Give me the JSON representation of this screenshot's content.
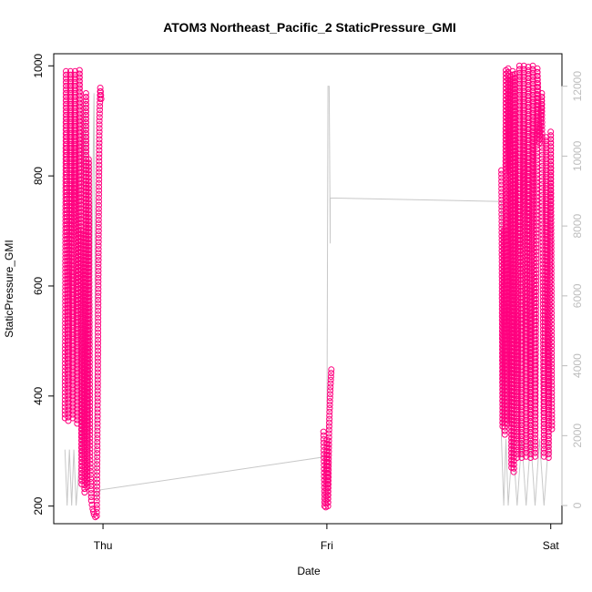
{
  "chart_data": {
    "type": "scatter",
    "title": "ATOM3 Northeast_Pacific_2 StaticPressure_GMI",
    "xlabel": "Date",
    "ylabel": "StaticPressure_GMI",
    "x_tick_labels": [
      "Thu",
      "Fri",
      "Sat"
    ],
    "x_ticks": [
      0,
      1,
      2
    ],
    "xlim": [
      -0.22,
      2.05
    ],
    "ylim": [
      168,
      1022
    ],
    "y_ticks": [
      200,
      400,
      600,
      800,
      1000
    ],
    "y2lim": [
      -520,
      12930
    ],
    "y2_ticks": [
      0,
      2000,
      4000,
      6000,
      8000,
      10000,
      12000
    ],
    "grid": false,
    "legend": "none",
    "colors": {
      "points": "#ff007f",
      "altitude_line": "#c8c8c8"
    },
    "series": [
      {
        "marker": "open-circle",
        "axis": "left",
        "segments": [
          [
            -0.17,
            360
          ],
          [
            -0.165,
            990
          ],
          [
            -0.155,
            355
          ],
          [
            -0.145,
            990
          ],
          [
            -0.135,
            360
          ],
          [
            -0.125,
            990
          ],
          [
            -0.115,
            350
          ],
          [
            -0.105,
            992
          ],
          [
            -0.095,
            240
          ],
          [
            -0.088,
            700
          ],
          [
            -0.082,
            225
          ],
          [
            -0.076,
            950
          ],
          [
            -0.07,
            235
          ],
          [
            -0.064,
            830
          ],
          [
            -0.058,
            290
          ],
          [
            -0.052,
            210
          ],
          [
            -0.046,
            195
          ],
          [
            -0.04,
            185
          ],
          [
            -0.034,
            180
          ],
          [
            -0.028,
            182
          ],
          [
            -0.024,
            390
          ],
          [
            -0.02,
            680
          ],
          [
            -0.016,
            900
          ],
          [
            -0.012,
            960
          ],
          [
            -0.008,
            940
          ],
          [
            0.985,
            335
          ],
          [
            0.99,
            200
          ],
          [
            0.995,
            198
          ],
          [
            1.0,
            320
          ],
          [
            1.005,
            200
          ],
          [
            1.01,
            345
          ],
          [
            1.015,
            410
          ],
          [
            1.02,
            448
          ],
          [
            1.78,
            810
          ],
          [
            1.785,
            345
          ],
          [
            1.79,
            700
          ],
          [
            1.795,
            330
          ],
          [
            1.8,
            992
          ],
          [
            1.805,
            350
          ],
          [
            1.81,
            995
          ],
          [
            1.815,
            810
          ],
          [
            1.82,
            980
          ],
          [
            1.825,
            270
          ],
          [
            1.83,
            990
          ],
          [
            1.835,
            262
          ],
          [
            1.84,
            985
          ],
          [
            1.85,
            288
          ],
          [
            1.86,
            1000
          ],
          [
            1.87,
            288
          ],
          [
            1.88,
            1000
          ],
          [
            1.89,
            290
          ],
          [
            1.9,
            998
          ],
          [
            1.91,
            288
          ],
          [
            1.92,
            1000
          ],
          [
            1.93,
            290
          ],
          [
            1.94,
            995
          ],
          [
            1.95,
            860
          ],
          [
            1.96,
            950
          ],
          [
            1.97,
            290
          ],
          [
            1.98,
            870
          ],
          [
            1.99,
            288
          ],
          [
            2.0,
            880
          ],
          [
            2.005,
            340
          ]
        ]
      },
      {
        "marker": "line",
        "axis": "right",
        "points": [
          [
            -0.17,
            1600
          ],
          [
            -0.16,
            0
          ],
          [
            -0.15,
            1600
          ],
          [
            -0.14,
            0
          ],
          [
            -0.13,
            1600
          ],
          [
            -0.12,
            0
          ],
          [
            -0.1,
            1700
          ],
          [
            -0.08,
            11600
          ],
          [
            -0.06,
            1500
          ],
          [
            -0.04,
            11800
          ],
          [
            -0.03,
            200
          ],
          [
            -0.01,
            450
          ],
          [
            1.0,
            1400
          ],
          [
            1.005,
            12000
          ],
          [
            1.01,
            12000
          ],
          [
            1.015,
            7500
          ],
          [
            1.015,
            8800
          ],
          [
            1.78,
            8700
          ],
          [
            1.78,
            1900
          ],
          [
            1.79,
            0
          ],
          [
            1.8,
            1900
          ],
          [
            1.81,
            0
          ],
          [
            1.83,
            1900
          ],
          [
            1.85,
            0
          ],
          [
            1.87,
            1900
          ],
          [
            1.89,
            0
          ],
          [
            1.91,
            1900
          ],
          [
            1.93,
            0
          ],
          [
            1.95,
            1900
          ],
          [
            1.97,
            0
          ],
          [
            1.99,
            1800
          ],
          [
            2.005,
            1500
          ]
        ]
      }
    ]
  }
}
